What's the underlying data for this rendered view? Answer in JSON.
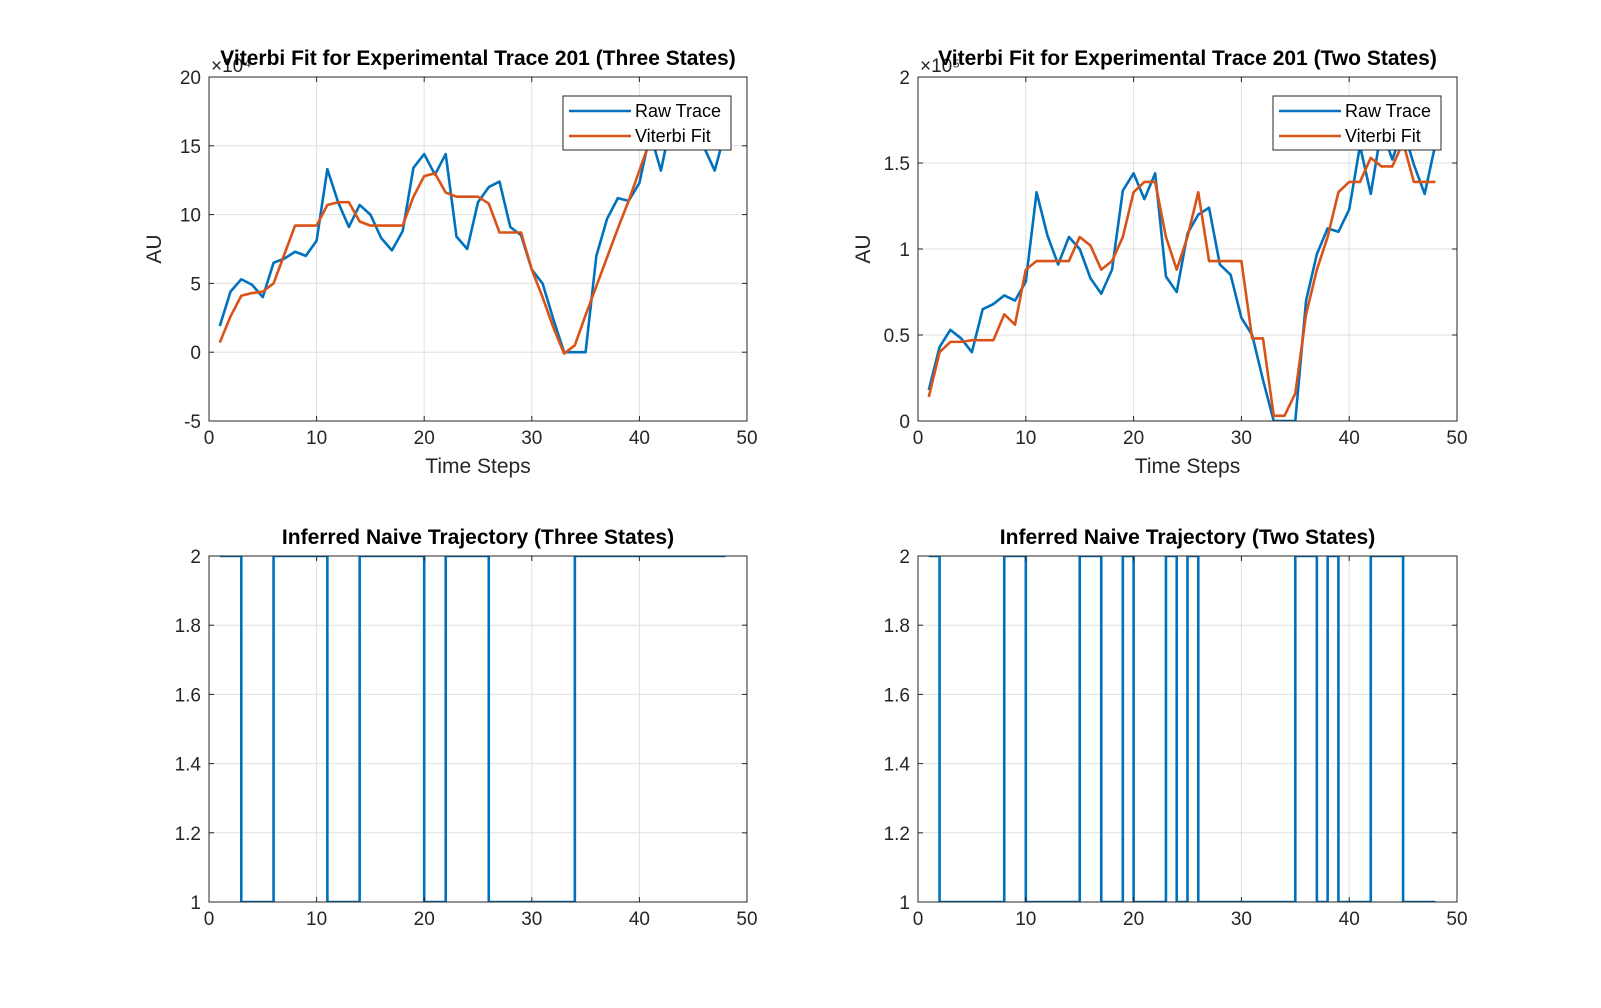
{
  "chart_data": [
    {
      "type": "line",
      "title": "Viterbi Fit for Experimental Trace 201 (Three States)",
      "xlabel": "Time Steps",
      "ylabel": "AU",
      "y_multiplier": "×10⁴",
      "xlim": [
        0,
        50
      ],
      "ylim": [
        -5,
        20
      ],
      "xticks": [
        0,
        10,
        20,
        30,
        40,
        50
      ],
      "yticks": [
        -5,
        0,
        5,
        10,
        15,
        20
      ],
      "grid": true,
      "legend": "top-right",
      "series": [
        {
          "name": "Raw Trace",
          "color": "#0072BD",
          "x": [
            1,
            2,
            3,
            4,
            5,
            6,
            7,
            8,
            9,
            10,
            11,
            12,
            13,
            14,
            15,
            16,
            17,
            18,
            19,
            20,
            21,
            22,
            23,
            24,
            25,
            26,
            27,
            28,
            29,
            30,
            31,
            32,
            33,
            34,
            35,
            36,
            37,
            38,
            39,
            40,
            41,
            42,
            43,
            44,
            45,
            46,
            47,
            48
          ],
          "values": [
            1.9,
            4.4,
            5.3,
            4.9,
            4.0,
            6.5,
            6.8,
            7.3,
            7.0,
            8.1,
            13.3,
            10.9,
            9.1,
            10.7,
            10.0,
            8.3,
            7.4,
            8.8,
            13.4,
            14.4,
            12.9,
            14.4,
            8.4,
            7.5,
            10.9,
            12.0,
            12.4,
            9.1,
            8.5,
            6.0,
            5.0,
            2.4,
            0.0,
            0.0,
            0.0,
            7.0,
            9.7,
            11.2,
            11.0,
            12.3,
            15.9,
            13.2,
            16.9,
            15.2,
            17.0,
            14.9,
            13.2,
            16.1
          ]
        },
        {
          "name": "Viterbi Fit",
          "color": "#D95319",
          "x": [
            1,
            2,
            3,
            4,
            5,
            6,
            7,
            8,
            9,
            10,
            11,
            12,
            13,
            14,
            15,
            16,
            17,
            18,
            19,
            20,
            21,
            22,
            23,
            24,
            25,
            26,
            27,
            28,
            29,
            30,
            31,
            32,
            33,
            34,
            35,
            36,
            37,
            38,
            39,
            40,
            41,
            42,
            43,
            44,
            45,
            46,
            47,
            48
          ],
          "values": [
            0.7,
            2.6,
            4.1,
            4.3,
            4.4,
            5.0,
            7.1,
            9.2,
            9.2,
            9.2,
            10.7,
            10.9,
            10.9,
            9.5,
            9.2,
            9.2,
            9.2,
            9.2,
            11.3,
            12.8,
            13.0,
            11.6,
            11.3,
            11.3,
            11.3,
            10.8,
            8.7,
            8.7,
            8.7,
            6.0,
            4.0,
            1.8,
            -0.1,
            0.5,
            2.7,
            4.8,
            6.9,
            9.0,
            11.0,
            13.2,
            15.4,
            16.9,
            15.4,
            16.8,
            16.8,
            16.8,
            16.8,
            16.8
          ]
        }
      ]
    },
    {
      "type": "line",
      "title": "Viterbi Fit for Experimental Trace  201 (Two States)",
      "xlabel": "Time Steps",
      "ylabel": "AU",
      "y_multiplier": "×10⁵",
      "xlim": [
        0,
        50
      ],
      "ylim": [
        0,
        2
      ],
      "xticks": [
        0,
        10,
        20,
        30,
        40,
        50
      ],
      "yticks": [
        0,
        0.5,
        1,
        1.5,
        2
      ],
      "grid": true,
      "legend": "top-right",
      "series": [
        {
          "name": "Raw Trace",
          "color": "#0072BD",
          "x": [
            1,
            2,
            3,
            4,
            5,
            6,
            7,
            8,
            9,
            10,
            11,
            12,
            13,
            14,
            15,
            16,
            17,
            18,
            19,
            20,
            21,
            22,
            23,
            24,
            25,
            26,
            27,
            28,
            29,
            30,
            31,
            32,
            33,
            34,
            35,
            36,
            37,
            38,
            39,
            40,
            41,
            42,
            43,
            44,
            45,
            46,
            47,
            48
          ],
          "values": [
            0.18,
            0.43,
            0.53,
            0.48,
            0.4,
            0.65,
            0.68,
            0.73,
            0.7,
            0.81,
            1.33,
            1.08,
            0.91,
            1.07,
            1.0,
            0.83,
            0.74,
            0.88,
            1.34,
            1.44,
            1.29,
            1.44,
            0.84,
            0.75,
            1.09,
            1.2,
            1.24,
            0.91,
            0.85,
            0.6,
            0.5,
            0.24,
            0.0,
            0.0,
            0.0,
            0.7,
            0.97,
            1.12,
            1.1,
            1.23,
            1.6,
            1.32,
            1.7,
            1.52,
            1.7,
            1.49,
            1.32,
            1.61
          ]
        },
        {
          "name": "Viterbi Fit",
          "color": "#D95319",
          "x": [
            1,
            2,
            3,
            4,
            5,
            6,
            7,
            8,
            9,
            10,
            11,
            12,
            13,
            14,
            15,
            16,
            17,
            18,
            19,
            20,
            21,
            22,
            23,
            24,
            25,
            26,
            27,
            28,
            29,
            30,
            31,
            32,
            33,
            34,
            35,
            36,
            37,
            38,
            39,
            40,
            41,
            42,
            43,
            44,
            45,
            46,
            47,
            48
          ],
          "values": [
            0.14,
            0.4,
            0.46,
            0.46,
            0.47,
            0.47,
            0.47,
            0.62,
            0.56,
            0.88,
            0.93,
            0.93,
            0.93,
            0.93,
            1.07,
            1.02,
            0.88,
            0.93,
            1.07,
            1.33,
            1.39,
            1.39,
            1.07,
            0.88,
            1.07,
            1.33,
            0.93,
            0.93,
            0.93,
            0.93,
            0.48,
            0.48,
            0.03,
            0.03,
            0.16,
            0.62,
            0.88,
            1.07,
            1.33,
            1.39,
            1.39,
            1.53,
            1.48,
            1.48,
            1.62,
            1.39,
            1.39,
            1.39
          ]
        }
      ]
    },
    {
      "type": "line",
      "title": "Inferred Naive Trajectory (Three States)",
      "xlabel": "",
      "ylabel": "",
      "xlim": [
        0,
        50
      ],
      "ylim": [
        1,
        2
      ],
      "xticks": [
        0,
        10,
        20,
        30,
        40,
        50
      ],
      "yticks": [
        1,
        1.2,
        1.4,
        1.6,
        1.8,
        2
      ],
      "grid": true,
      "step": true,
      "series": [
        {
          "color": "#0072BD",
          "x": [
            1,
            2,
            3,
            4,
            5,
            6,
            7,
            8,
            9,
            10,
            11,
            12,
            13,
            14,
            15,
            16,
            17,
            18,
            19,
            20,
            21,
            22,
            23,
            24,
            25,
            26,
            27,
            28,
            29,
            30,
            31,
            32,
            33,
            34,
            35,
            36,
            37,
            38,
            39,
            40,
            41,
            42,
            43,
            44,
            45,
            46,
            47,
            48
          ],
          "values": [
            2,
            2,
            1,
            1,
            1,
            2,
            2,
            2,
            2,
            2,
            1,
            1,
            1,
            2,
            2,
            2,
            2,
            2,
            2,
            1,
            1,
            2,
            2,
            2,
            2,
            1,
            1,
            1,
            1,
            1,
            1,
            1,
            1,
            2,
            2,
            2,
            2,
            2,
            2,
            2,
            2,
            2,
            2,
            2,
            2,
            2,
            2,
            2
          ]
        }
      ]
    },
    {
      "type": "line",
      "title": "Inferred Naive Trajectory (Two States)",
      "xlabel": "",
      "ylabel": "",
      "xlim": [
        0,
        50
      ],
      "ylim": [
        1,
        2
      ],
      "xticks": [
        0,
        10,
        20,
        30,
        40,
        50
      ],
      "yticks": [
        1,
        1.2,
        1.4,
        1.6,
        1.8,
        2
      ],
      "grid": true,
      "step": true,
      "series": [
        {
          "color": "#0072BD",
          "x": [
            1,
            2,
            3,
            4,
            5,
            6,
            7,
            8,
            9,
            10,
            11,
            12,
            13,
            14,
            15,
            16,
            17,
            18,
            19,
            20,
            21,
            22,
            23,
            24,
            25,
            26,
            27,
            28,
            29,
            30,
            31,
            32,
            33,
            34,
            35,
            36,
            37,
            38,
            39,
            40,
            41,
            42,
            43,
            44,
            45,
            46,
            47,
            48
          ],
          "values": [
            2,
            1,
            1,
            1,
            1,
            1,
            1,
            2,
            2,
            1,
            1,
            1,
            1,
            1,
            2,
            2,
            1,
            1,
            2,
            1,
            1,
            1,
            2,
            1,
            2,
            1,
            1,
            1,
            1,
            1,
            1,
            1,
            1,
            1,
            2,
            2,
            1,
            2,
            1,
            1,
            1,
            2,
            2,
            2,
            1,
            1,
            1,
            1
          ]
        }
      ]
    }
  ]
}
